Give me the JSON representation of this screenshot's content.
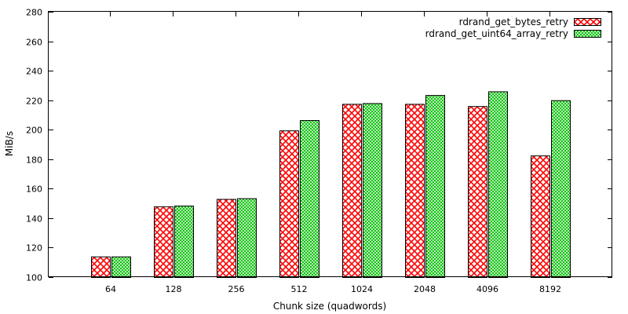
{
  "chart_data": {
    "type": "bar",
    "title": "",
    "xlabel": "Chunk size (quadwords)",
    "ylabel": "MiB/s",
    "ylim": [
      100,
      280
    ],
    "yticks": [
      100,
      120,
      140,
      160,
      180,
      200,
      220,
      240,
      260,
      280
    ],
    "categories": [
      "64",
      "128",
      "256",
      "512",
      "1024",
      "2048",
      "4096",
      "8192"
    ],
    "grid": false,
    "legend_position": "top-right",
    "series": [
      {
        "name": "rdrand_get_bytes_retry",
        "values": [
          114,
          148,
          153,
          199.5,
          217.5,
          217.5,
          216,
          182.5
        ],
        "color": "#ff0000",
        "pattern": "crosshatch"
      },
      {
        "name": "rdrand_get_uint64_array_retry",
        "values": [
          114,
          148.5,
          153.5,
          206.5,
          218,
          223.5,
          226,
          220
        ],
        "color": "#00c000",
        "pattern": "fine-crosshatch"
      }
    ]
  }
}
